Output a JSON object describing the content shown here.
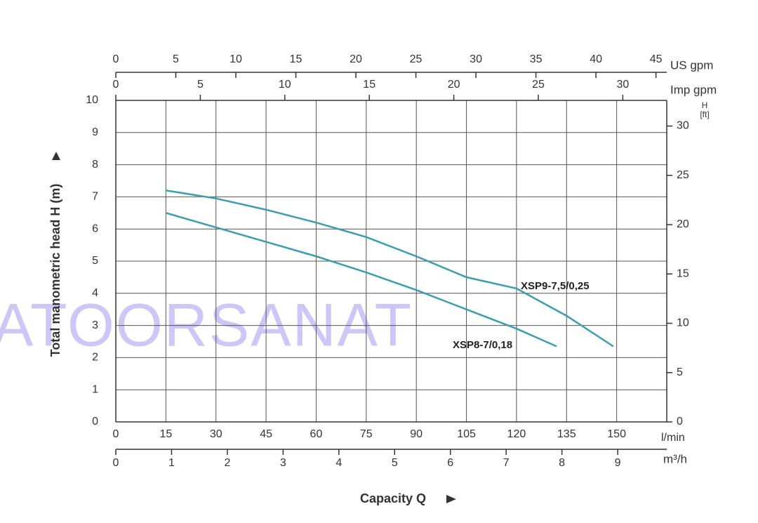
{
  "chart_data": {
    "type": "line",
    "watermark": "ATOORSANAT",
    "xlabel": "Capacity Q",
    "ylabel": "Total manometric head H (m)",
    "x_unit": "l/min",
    "xlim": [
      0,
      165
    ],
    "xticks": [
      0,
      15,
      30,
      45,
      60,
      75,
      90,
      105,
      120,
      135,
      150
    ],
    "ylim": [
      0,
      10
    ],
    "yticks": [
      0,
      1,
      2,
      3,
      4,
      5,
      6,
      7,
      8,
      9,
      10
    ],
    "y2_unit_top": "H",
    "y2_unit": "[ft]",
    "y2lim": [
      0,
      32.6
    ],
    "y2ticks": [
      0,
      5,
      10,
      15,
      20,
      25,
      30
    ],
    "grid": true,
    "secondary_x_axes": [
      {
        "unit": "m³/h",
        "position": "bottom",
        "lim": [
          0,
          9.88
        ],
        "ticks": [
          0,
          1,
          2,
          3,
          4,
          5,
          6,
          7,
          8,
          9
        ]
      },
      {
        "unit": "US gpm",
        "position": "top",
        "lim": [
          0,
          45.9
        ],
        "ticks": [
          0,
          5,
          10,
          15,
          20,
          25,
          30,
          35,
          40,
          45
        ]
      },
      {
        "unit": "Imp gpm",
        "position": "top",
        "lim": [
          0,
          32.6
        ],
        "ticks": [
          0,
          5,
          10,
          15,
          20,
          25,
          30
        ]
      }
    ],
    "series": [
      {
        "name": "XSP9-7,5/0,25",
        "color": "#3a9db2",
        "x": [
          15,
          30,
          45,
          60,
          75,
          90,
          105,
          120,
          135,
          149
        ],
        "values": [
          7.2,
          6.95,
          6.6,
          6.2,
          5.75,
          5.15,
          4.5,
          4.15,
          3.3,
          2.35
        ]
      },
      {
        "name": "XSP8-7/0,18",
        "color": "#3a9db2",
        "x": [
          15,
          30,
          45,
          60,
          75,
          90,
          105,
          120,
          132
        ],
        "values": [
          6.5,
          6.05,
          5.6,
          5.15,
          4.65,
          4.1,
          3.5,
          2.9,
          2.35
        ]
      }
    ]
  }
}
